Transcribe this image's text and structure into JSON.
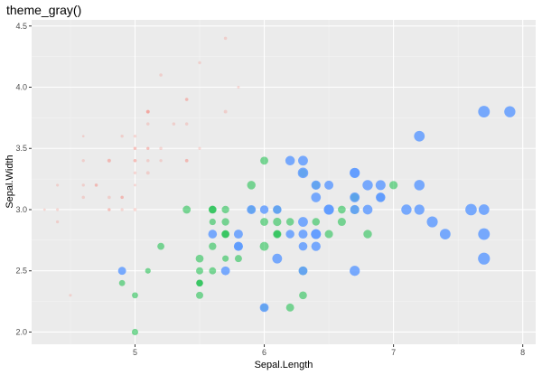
{
  "chart_data": {
    "type": "scatter",
    "title": "theme_gray()",
    "xlabel": "Sepal.Length",
    "ylabel": "Sepal.Width",
    "xlim": [
      4.2,
      8.1
    ],
    "ylim": [
      1.9,
      4.55
    ],
    "x_ticks": [
      5,
      6,
      7,
      8
    ],
    "x_tick_labels": [
      "5",
      "6",
      "7",
      "8"
    ],
    "y_ticks": [
      2.0,
      2.5,
      3.0,
      3.5,
      4.0,
      4.5
    ],
    "y_tick_labels": [
      "2.0",
      "2.5",
      "3.0",
      "3.5",
      "4.0",
      "4.5"
    ],
    "grid": true,
    "legend": "none",
    "size_variable": "Petal.Length",
    "colors": {
      "panel_background": "#ebebeb",
      "grid_major": "#ffffff",
      "grid_minor": "#f4f4f4",
      "setosa": "#F8766D",
      "versicolor": "#00BA38",
      "virginica": "#619CFF"
    },
    "series": [
      {
        "color": "#F8766D",
        "opacity": 0.25,
        "points": [
          [
            5.1,
            3.5,
            1.4
          ],
          [
            4.9,
            3.0,
            1.4
          ],
          [
            4.7,
            3.2,
            1.3
          ],
          [
            4.6,
            3.1,
            1.5
          ],
          [
            5.0,
            3.6,
            1.4
          ],
          [
            5.4,
            3.9,
            1.7
          ],
          [
            4.6,
            3.4,
            1.4
          ],
          [
            5.0,
            3.4,
            1.5
          ],
          [
            4.4,
            2.9,
            1.4
          ],
          [
            4.9,
            3.1,
            1.5
          ],
          [
            5.4,
            3.7,
            1.5
          ],
          [
            4.8,
            3.4,
            1.6
          ],
          [
            4.8,
            3.0,
            1.4
          ],
          [
            4.3,
            3.0,
            1.1
          ],
          [
            5.8,
            4.0,
            1.2
          ],
          [
            5.7,
            4.4,
            1.5
          ],
          [
            5.4,
            3.9,
            1.3
          ],
          [
            5.1,
            3.5,
            1.4
          ],
          [
            5.7,
            3.8,
            1.7
          ],
          [
            5.1,
            3.8,
            1.5
          ],
          [
            5.4,
            3.4,
            1.7
          ],
          [
            5.1,
            3.7,
            1.5
          ],
          [
            4.6,
            3.6,
            1.0
          ],
          [
            5.1,
            3.3,
            1.7
          ],
          [
            4.8,
            3.4,
            1.9
          ],
          [
            5.0,
            3.0,
            1.6
          ],
          [
            5.0,
            3.4,
            1.6
          ],
          [
            5.2,
            3.5,
            1.5
          ],
          [
            5.2,
            3.4,
            1.4
          ],
          [
            4.7,
            3.2,
            1.6
          ],
          [
            4.8,
            3.1,
            1.6
          ],
          [
            5.4,
            3.4,
            1.5
          ],
          [
            5.2,
            4.1,
            1.5
          ],
          [
            5.5,
            4.2,
            1.4
          ],
          [
            4.9,
            3.1,
            1.5
          ],
          [
            5.0,
            3.2,
            1.2
          ],
          [
            5.5,
            3.5,
            1.3
          ],
          [
            4.9,
            3.6,
            1.4
          ],
          [
            4.4,
            3.0,
            1.3
          ],
          [
            5.1,
            3.4,
            1.5
          ],
          [
            5.0,
            3.5,
            1.3
          ],
          [
            4.5,
            2.3,
            1.3
          ],
          [
            4.4,
            3.2,
            1.3
          ],
          [
            5.0,
            3.5,
            1.6
          ],
          [
            5.1,
            3.8,
            1.9
          ],
          [
            4.8,
            3.0,
            1.4
          ],
          [
            5.1,
            3.8,
            1.6
          ],
          [
            4.6,
            3.2,
            1.4
          ],
          [
            5.3,
            3.7,
            1.5
          ],
          [
            5.0,
            3.3,
            1.4
          ]
        ]
      },
      {
        "color": "#00BA38",
        "opacity": 0.5,
        "points": [
          [
            7.0,
            3.2,
            4.7
          ],
          [
            6.4,
            3.2,
            4.5
          ],
          [
            6.9,
            3.1,
            4.9
          ],
          [
            5.5,
            2.3,
            4.0
          ],
          [
            6.5,
            2.8,
            4.6
          ],
          [
            5.7,
            2.8,
            4.5
          ],
          [
            6.3,
            3.3,
            4.7
          ],
          [
            4.9,
            2.4,
            3.3
          ],
          [
            6.6,
            2.9,
            4.6
          ],
          [
            5.2,
            2.7,
            3.9
          ],
          [
            5.0,
            2.0,
            3.5
          ],
          [
            5.9,
            3.0,
            4.2
          ],
          [
            6.0,
            2.2,
            4.0
          ],
          [
            6.1,
            2.9,
            4.7
          ],
          [
            5.6,
            2.9,
            3.6
          ],
          [
            6.7,
            3.1,
            4.4
          ],
          [
            5.6,
            3.0,
            4.5
          ],
          [
            5.8,
            2.7,
            4.1
          ],
          [
            6.2,
            2.2,
            4.5
          ],
          [
            5.6,
            2.5,
            3.9
          ],
          [
            5.9,
            3.2,
            4.8
          ],
          [
            6.1,
            2.8,
            4.0
          ],
          [
            6.3,
            2.5,
            4.9
          ],
          [
            6.1,
            2.8,
            4.7
          ],
          [
            6.4,
            2.9,
            4.3
          ],
          [
            6.6,
            3.0,
            4.4
          ],
          [
            6.8,
            2.8,
            4.8
          ],
          [
            6.7,
            3.0,
            5.0
          ],
          [
            6.0,
            2.9,
            4.5
          ],
          [
            5.7,
            2.6,
            3.5
          ],
          [
            5.5,
            2.4,
            3.8
          ],
          [
            5.5,
            2.4,
            3.7
          ],
          [
            5.8,
            2.7,
            3.9
          ],
          [
            6.0,
            2.7,
            5.1
          ],
          [
            5.4,
            3.0,
            4.5
          ],
          [
            6.0,
            3.4,
            4.5
          ],
          [
            6.7,
            3.1,
            4.7
          ],
          [
            6.3,
            2.3,
            4.4
          ],
          [
            5.6,
            3.0,
            4.1
          ],
          [
            5.5,
            2.5,
            4.0
          ],
          [
            5.5,
            2.6,
            4.4
          ],
          [
            6.1,
            3.0,
            4.6
          ],
          [
            5.8,
            2.6,
            4.0
          ],
          [
            5.0,
            2.3,
            3.3
          ],
          [
            5.6,
            2.7,
            4.2
          ],
          [
            5.7,
            3.0,
            4.2
          ],
          [
            5.7,
            2.9,
            4.2
          ],
          [
            6.2,
            2.9,
            4.3
          ],
          [
            5.1,
            2.5,
            3.0
          ],
          [
            5.7,
            2.8,
            4.1
          ]
        ]
      },
      {
        "color": "#619CFF",
        "opacity": 0.85,
        "points": [
          [
            6.3,
            3.3,
            6.0
          ],
          [
            5.8,
            2.7,
            5.1
          ],
          [
            7.1,
            3.0,
            5.9
          ],
          [
            6.3,
            2.9,
            5.6
          ],
          [
            6.5,
            3.0,
            5.8
          ],
          [
            7.6,
            3.0,
            6.6
          ],
          [
            4.9,
            2.5,
            4.5
          ],
          [
            7.3,
            2.9,
            6.3
          ],
          [
            6.7,
            2.5,
            5.8
          ],
          [
            7.2,
            3.6,
            6.1
          ],
          [
            6.5,
            3.2,
            5.1
          ],
          [
            6.4,
            2.7,
            5.3
          ],
          [
            6.8,
            3.0,
            5.5
          ],
          [
            5.7,
            2.5,
            5.0
          ],
          [
            5.8,
            2.8,
            5.1
          ],
          [
            6.4,
            3.2,
            5.3
          ],
          [
            6.5,
            3.0,
            5.5
          ],
          [
            7.7,
            3.8,
            6.7
          ],
          [
            7.7,
            2.6,
            6.9
          ],
          [
            6.0,
            2.2,
            5.0
          ],
          [
            6.9,
            3.2,
            5.7
          ],
          [
            5.6,
            2.8,
            4.9
          ],
          [
            7.7,
            2.8,
            6.7
          ],
          [
            6.3,
            2.7,
            4.9
          ],
          [
            6.7,
            3.3,
            5.7
          ],
          [
            7.2,
            3.2,
            6.0
          ],
          [
            6.2,
            2.8,
            4.8
          ],
          [
            6.1,
            3.0,
            4.9
          ],
          [
            6.4,
            2.8,
            5.6
          ],
          [
            7.2,
            3.0,
            5.8
          ],
          [
            7.4,
            2.8,
            6.1
          ],
          [
            7.9,
            3.8,
            6.4
          ],
          [
            6.4,
            2.8,
            5.6
          ],
          [
            6.3,
            2.8,
            5.1
          ],
          [
            6.1,
            2.6,
            5.6
          ],
          [
            7.7,
            3.0,
            6.1
          ],
          [
            6.3,
            3.4,
            5.6
          ],
          [
            6.4,
            3.1,
            5.5
          ],
          [
            6.0,
            3.0,
            4.8
          ],
          [
            6.9,
            3.1,
            5.4
          ],
          [
            6.7,
            3.1,
            5.6
          ],
          [
            6.9,
            3.1,
            5.1
          ],
          [
            5.8,
            2.7,
            5.1
          ],
          [
            6.8,
            3.2,
            5.9
          ],
          [
            6.7,
            3.3,
            5.7
          ],
          [
            6.7,
            3.0,
            5.2
          ],
          [
            6.3,
            2.5,
            5.0
          ],
          [
            6.5,
            3.0,
            5.2
          ],
          [
            6.2,
            3.4,
            5.4
          ],
          [
            5.9,
            3.0,
            5.1
          ]
        ]
      }
    ]
  }
}
